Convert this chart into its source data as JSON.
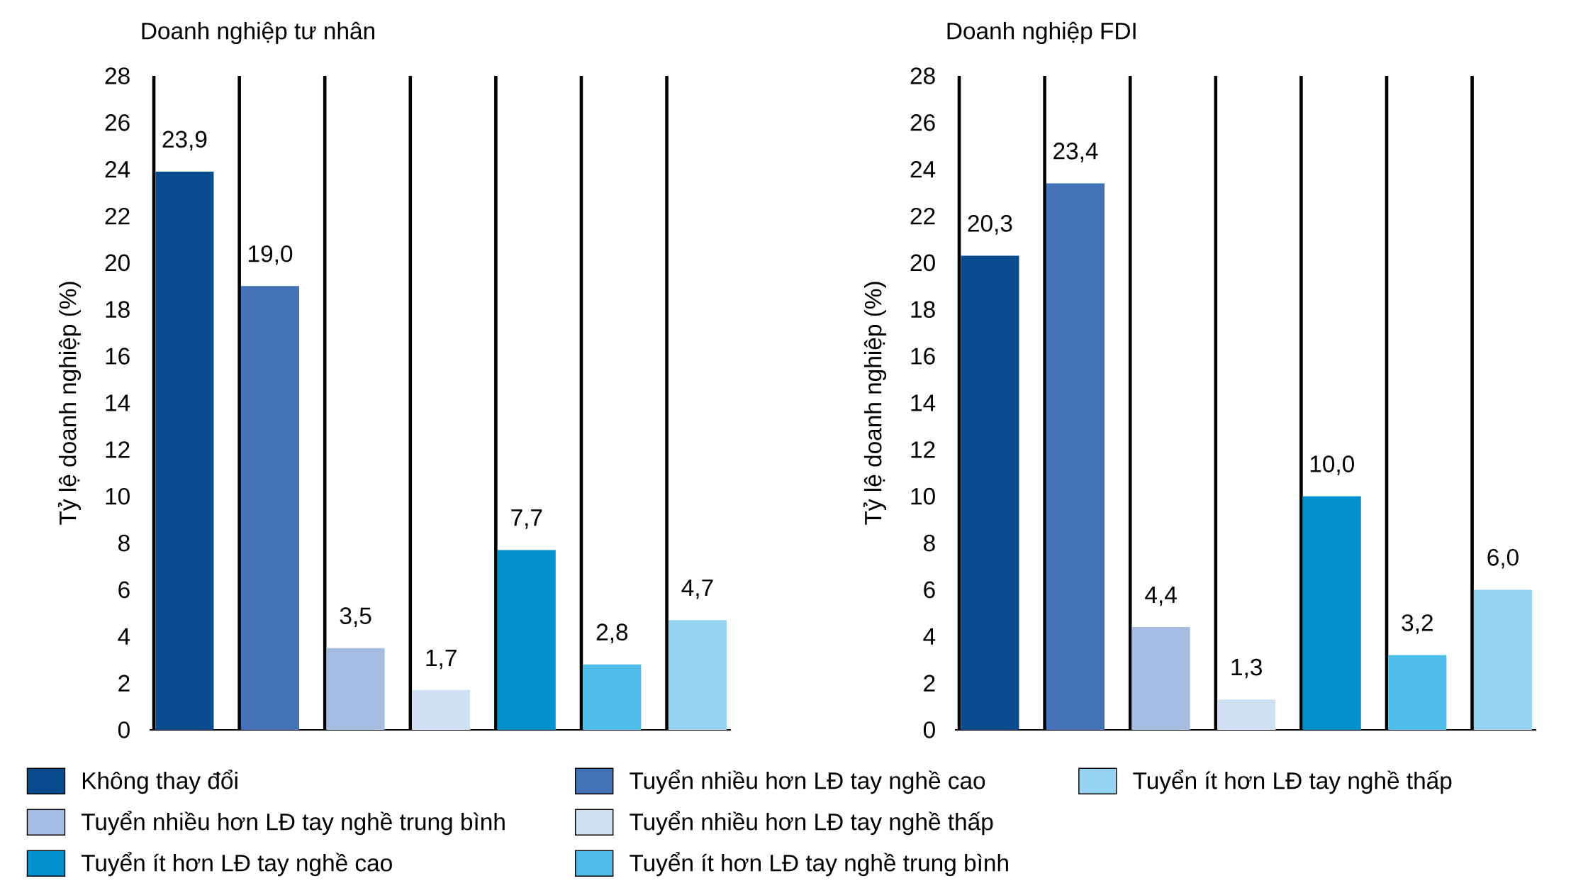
{
  "chart_data": [
    {
      "type": "bar",
      "title": "Doanh nghiệp tư nhân",
      "ylabel": "Tỷ lệ doanh nghiệp (%)",
      "categories": [
        null
      ],
      "ylim": [
        0,
        28
      ],
      "yticks": [
        0,
        2,
        4,
        6,
        8,
        10,
        12,
        14,
        16,
        18,
        20,
        22,
        24,
        26,
        28
      ],
      "grid": "x",
      "legend": "bottom",
      "series": [
        {
          "name": "Không thay đổi",
          "color": "#084c8d",
          "values": [
            23.9
          ],
          "value_labels": [
            "23,9"
          ]
        },
        {
          "name": "Tuyển nhiều hơn LĐ tay nghề cao",
          "color": "#4472b8",
          "values": [
            19.0
          ],
          "value_labels": [
            "19,0"
          ]
        },
        {
          "name": "Tuyển nhiều hơn LĐ tay nghề trung bình",
          "color": "#a5bde3",
          "values": [
            3.5
          ],
          "value_labels": [
            "3,5"
          ]
        },
        {
          "name": "Tuyển nhiều hơn LĐ tay nghề thấp",
          "color": "#cfe0f3",
          "values": [
            1.7
          ],
          "value_labels": [
            "1,7"
          ]
        },
        {
          "name": "Tuyển ít hơn LĐ tay nghề cao",
          "color": "#0090cf",
          "values": [
            7.7
          ],
          "value_labels": [
            "7,7"
          ]
        },
        {
          "name": "Tuyển ít hơn LĐ tay nghề trung bình",
          "color": "#4ebde9",
          "values": [
            2.8
          ],
          "value_labels": [
            "2,8"
          ]
        },
        {
          "name": "Tuyển ít hơn LĐ tay nghề thấp",
          "color": "#94d3f2",
          "values": [
            4.7
          ],
          "value_labels": [
            "4,7"
          ]
        }
      ]
    },
    {
      "type": "bar",
      "title": "Doanh nghiệp FDI",
      "ylabel": "Tỷ lệ doanh nghiệp (%)",
      "categories": [
        null
      ],
      "ylim": [
        0,
        28
      ],
      "yticks": [
        0,
        2,
        4,
        6,
        8,
        10,
        12,
        14,
        16,
        18,
        20,
        22,
        24,
        26,
        28
      ],
      "grid": "x",
      "series": [
        {
          "color": "#084c8d",
          "values": [
            20.3
          ],
          "value_labels": [
            "20,3"
          ]
        },
        {
          "color": "#4472b8",
          "values": [
            23.4
          ],
          "value_labels": [
            "23,4"
          ]
        },
        {
          "color": "#a5bde3",
          "values": [
            4.4
          ],
          "value_labels": [
            "4,4"
          ]
        },
        {
          "color": "#cfe0f3",
          "values": [
            1.3
          ],
          "value_labels": [
            "1,3"
          ]
        },
        {
          "color": "#0090cf",
          "values": [
            10.0
          ],
          "value_labels": [
            "10,0"
          ]
        },
        {
          "color": "#4ebde9",
          "values": [
            3.2
          ],
          "value_labels": [
            "3,2"
          ]
        },
        {
          "color": "#94d3f2",
          "values": [
            6.0
          ],
          "value_labels": [
            "6,0"
          ]
        }
      ]
    }
  ]
}
